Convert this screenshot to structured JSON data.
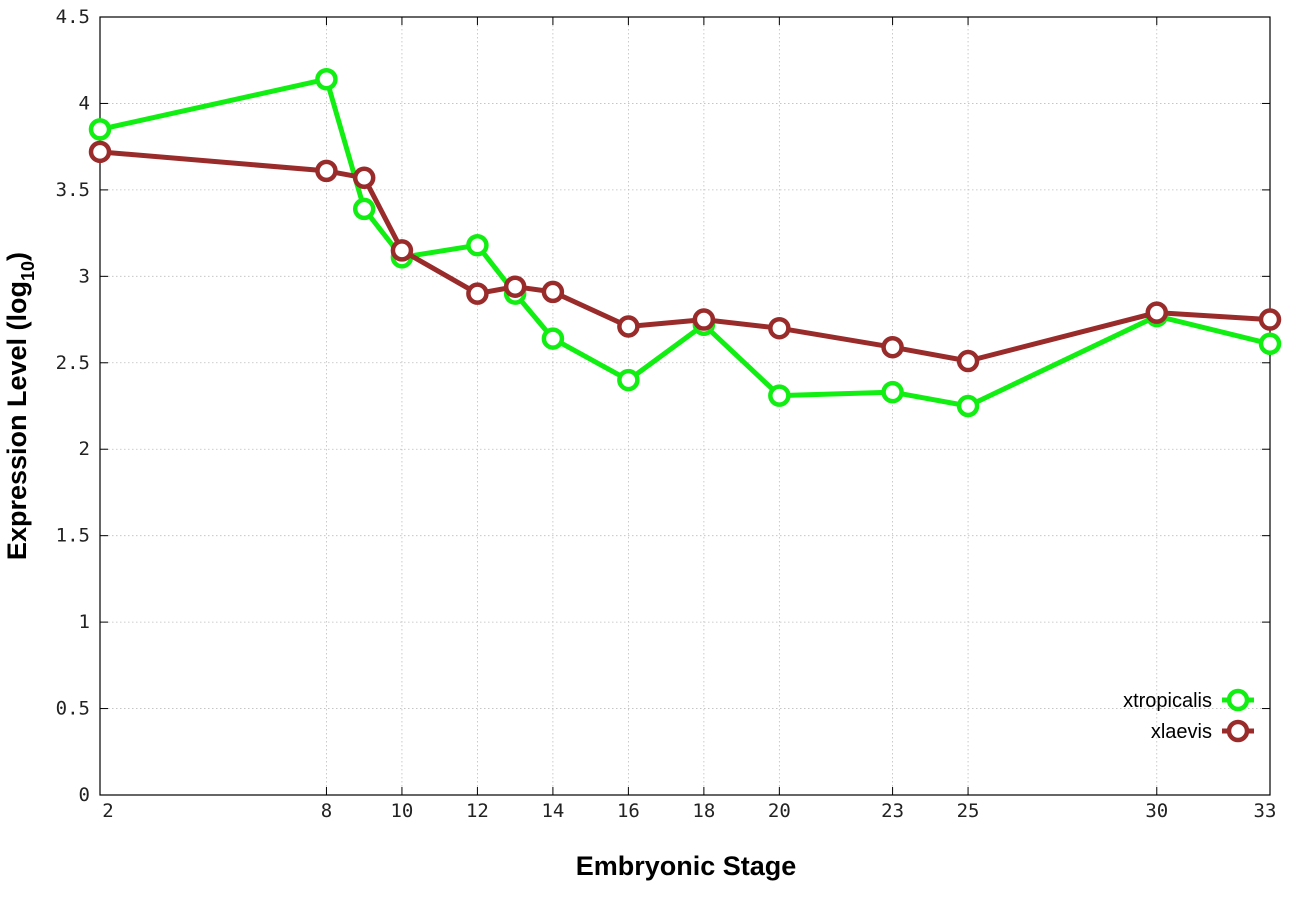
{
  "chart_data": {
    "type": "line",
    "xlabel": "Embryonic Stage",
    "ylabel": {
      "main": "Expression Level (log",
      "sub": "10",
      "close": ")"
    },
    "x": [
      2,
      8,
      9,
      10,
      12,
      13,
      14,
      16,
      18,
      20,
      23,
      25,
      30,
      33
    ],
    "x_ticks": [
      2,
      8,
      10,
      12,
      14,
      16,
      18,
      20,
      23,
      25,
      30,
      33
    ],
    "xlim": [
      2,
      33
    ],
    "y_ticks": [
      "0",
      "0.5",
      "1",
      "1.5",
      "2",
      "2.5",
      "3",
      "3.5",
      "4",
      "4.5"
    ],
    "ylim": [
      0,
      4.5
    ],
    "grid": true,
    "legend_position": "bottom-right",
    "series": [
      {
        "name": "xtropicalis",
        "color": "#11ee11",
        "values": [
          3.85,
          4.14,
          3.39,
          3.11,
          3.18,
          2.9,
          2.64,
          2.4,
          2.72,
          2.31,
          2.33,
          2.25,
          2.77,
          2.61
        ]
      },
      {
        "name": "xlaevis",
        "color": "#992b2b",
        "values": [
          3.72,
          3.61,
          3.57,
          3.15,
          2.9,
          2.94,
          2.91,
          2.71,
          2.75,
          2.7,
          2.59,
          2.51,
          2.79,
          2.75
        ]
      }
    ]
  }
}
